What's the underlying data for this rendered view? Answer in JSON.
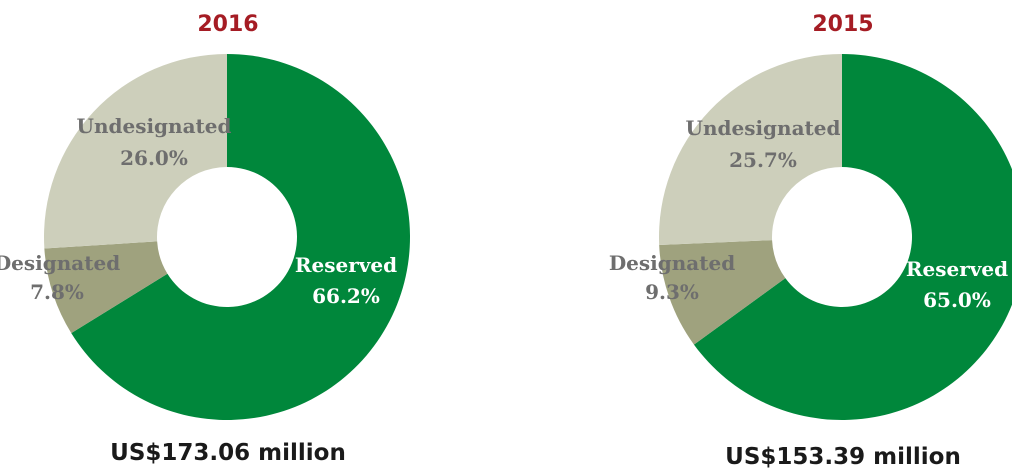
{
  "chart_data": [
    {
      "type": "pie",
      "title": "2016",
      "total_label": "US$173.06 million",
      "categories": [
        "Reserved",
        "Designated",
        "Undesignated"
      ],
      "values": [
        66.2,
        7.8,
        26.0
      ],
      "value_labels": [
        "66.2%",
        "7.8%",
        "26.0%"
      ],
      "colors": [
        "#00873b",
        "#9fa27e",
        "#cdcfbb"
      ],
      "label_colors": [
        "#ffffff",
        "#6e6e6e",
        "#6e6e6e"
      ]
    },
    {
      "type": "pie",
      "title": "2015",
      "total_label": "US$153.39 million",
      "categories": [
        "Reserved",
        "Designated",
        "Undesignated"
      ],
      "values": [
        65.0,
        9.3,
        25.7
      ],
      "value_labels": [
        "65.0%",
        "9.3%",
        "25.7%"
      ],
      "colors": [
        "#00873b",
        "#9fa27e",
        "#cdcfbb"
      ],
      "label_colors": [
        "#ffffff",
        "#6e6e6e",
        "#6e6e6e"
      ]
    }
  ],
  "accent_color": "#a51c24"
}
